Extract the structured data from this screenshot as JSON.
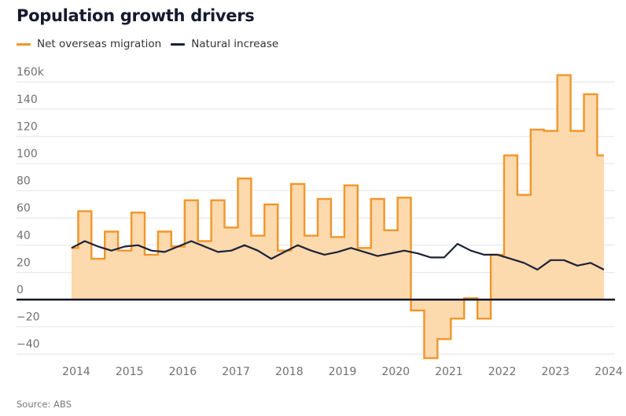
{
  "title": "Population growth drivers",
  "source": "Source: ABS",
  "colors": {
    "migration": "#f0962a",
    "migration_fill": "#fdd9ae",
    "natural": "#1b2236",
    "grid": "#e4e4e4",
    "zero": "#0d1424"
  },
  "chart_data": {
    "type": "line",
    "title": "Population growth drivers",
    "xlabel": "",
    "ylabel": "",
    "y_unit": "k",
    "ylim": [
      -50,
      160
    ],
    "y_ticks": [
      160,
      140,
      120,
      100,
      80,
      60,
      40,
      20,
      0,
      -20,
      -40
    ],
    "y_tick_labels": [
      "160k",
      "140",
      "120",
      "100",
      "80",
      "60",
      "40",
      "20",
      "0",
      "−20",
      "−40"
    ],
    "x_ticks": [
      2014,
      2015,
      2016,
      2017,
      2018,
      2019,
      2020,
      2021,
      2022,
      2023,
      2024
    ],
    "x_tick_labels": [
      "2014",
      "2015",
      "2016",
      "2017",
      "2018",
      "2019",
      "2020",
      "2021",
      "2022",
      "2023",
      "2024"
    ],
    "xlim": [
      2013.0,
      2024.3
    ],
    "x_start": 2013.91,
    "x_step": 0.25,
    "grid": true,
    "legend": "top-left",
    "series": [
      {
        "name": "Net overseas migration",
        "style": "step-area",
        "values": [
          38,
          65,
          30,
          50,
          36,
          64,
          33,
          50,
          39,
          73,
          43,
          73,
          53,
          89,
          47,
          70,
          36,
          85,
          47,
          74,
          46,
          84,
          38,
          74,
          51,
          75,
          -8,
          -43,
          -29,
          -14,
          1,
          -14,
          33,
          106,
          77,
          125,
          124,
          165,
          124,
          151,
          106
        ]
      },
      {
        "name": "Natural increase",
        "style": "line",
        "values": [
          38,
          43,
          39,
          36,
          39,
          40,
          36,
          35,
          39,
          43,
          39,
          35,
          36,
          40,
          36,
          30,
          35,
          40,
          36,
          33,
          35,
          38,
          35,
          32,
          34,
          36,
          34,
          31,
          31,
          41,
          36,
          33,
          33,
          30,
          27,
          22,
          29,
          29,
          25,
          27,
          22
        ]
      }
    ]
  }
}
